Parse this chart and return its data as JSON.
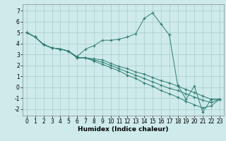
{
  "xlabel": "Humidex (Indice chaleur)",
  "background_color": "#ceeaea",
  "grid_color": "#aacccc",
  "line_color": "#2e7d6e",
  "xlim": [
    -0.5,
    23.5
  ],
  "ylim": [
    -2.6,
    7.6
  ],
  "xticks": [
    0,
    1,
    2,
    3,
    4,
    5,
    6,
    7,
    8,
    9,
    10,
    11,
    12,
    13,
    14,
    15,
    16,
    17,
    18,
    19,
    20,
    21,
    22,
    23
  ],
  "yticks": [
    -2,
    -1,
    0,
    1,
    2,
    3,
    4,
    5,
    6,
    7
  ],
  "line1_y": [
    5.0,
    4.6,
    3.9,
    3.6,
    3.5,
    3.3,
    2.8,
    3.5,
    3.8,
    4.3,
    4.3,
    4.4,
    4.6,
    4.9,
    6.3,
    6.8,
    5.8,
    4.8,
    0.2,
    -1.1,
    0.1,
    -2.3,
    -1.1,
    -1.1
  ],
  "line2_y": [
    5.0,
    4.6,
    3.9,
    3.6,
    3.5,
    3.3,
    2.7,
    2.7,
    2.6,
    2.5,
    2.2,
    1.9,
    1.7,
    1.4,
    1.2,
    0.9,
    0.6,
    0.4,
    0.1,
    -0.2,
    -0.5,
    -0.8,
    -1.1,
    -1.1
  ],
  "line3_y": [
    5.0,
    4.6,
    3.9,
    3.6,
    3.5,
    3.3,
    2.7,
    2.7,
    2.5,
    2.3,
    2.0,
    1.7,
    1.4,
    1.1,
    0.8,
    0.5,
    0.2,
    -0.1,
    -0.3,
    -0.6,
    -0.9,
    -1.2,
    -1.4,
    -1.1
  ],
  "line4_y": [
    5.0,
    4.6,
    3.9,
    3.6,
    3.5,
    3.3,
    2.7,
    2.7,
    2.4,
    2.1,
    1.8,
    1.5,
    1.1,
    0.8,
    0.4,
    0.1,
    -0.3,
    -0.6,
    -0.9,
    -1.3,
    -1.6,
    -1.9,
    -1.7,
    -1.1
  ],
  "tick_fontsize": 5.5,
  "xlabel_fontsize": 6.5
}
